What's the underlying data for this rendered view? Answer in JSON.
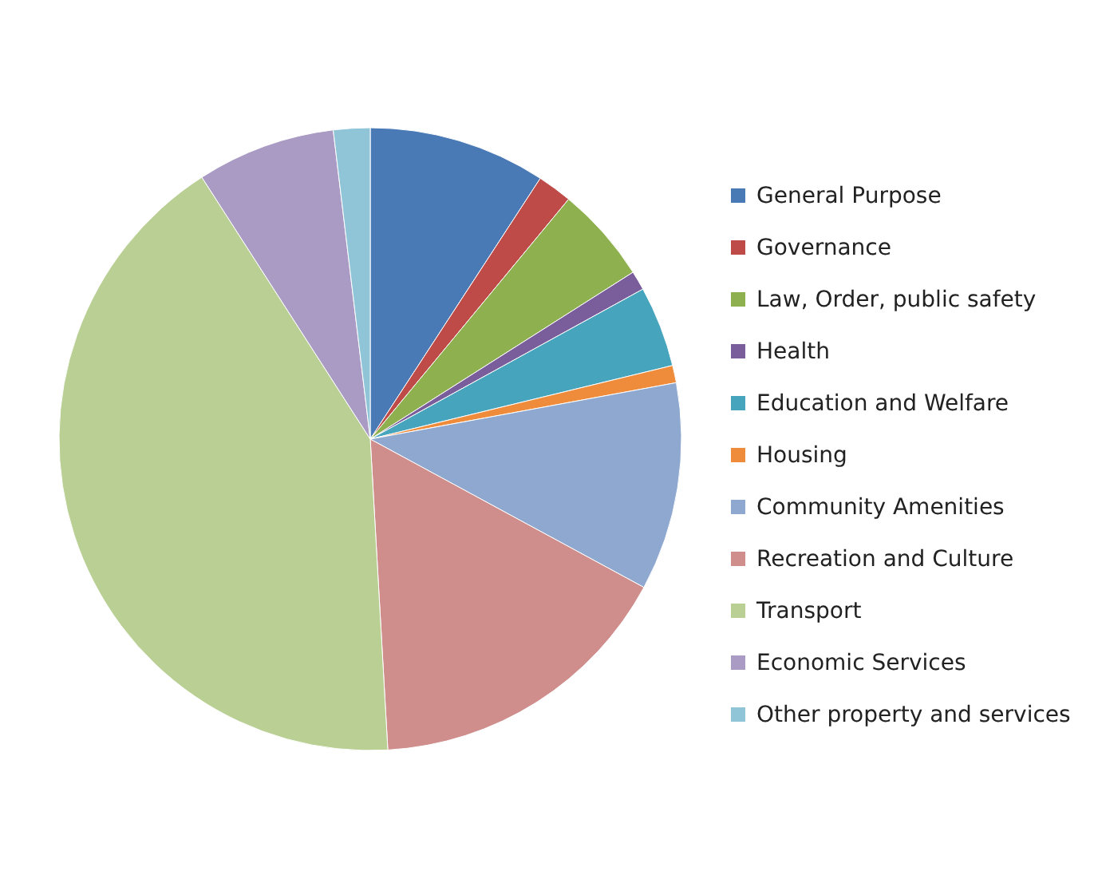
{
  "chart_data": {
    "type": "pie",
    "categories": [
      "General Purpose",
      "Governance",
      "Law, Order, public safety",
      "Health",
      "Education and Welfare",
      "Housing",
      "Community Amenities",
      "Recreation and Culture",
      "Transport",
      "Economic Services",
      "Other property and services"
    ],
    "values": [
      9.2,
      1.8,
      5,
      1,
      4.2,
      0.9,
      10.8,
      16.2,
      41.8,
      7.2,
      1.9
    ],
    "colors": [
      "#4a7ab5",
      "#be4b48",
      "#8fb04f",
      "#7a5e9c",
      "#46a5bd",
      "#ee8c3c",
      "#8fa8cf",
      "#cf8d8b",
      "#b9cf94",
      "#a99bc3",
      "#90c5d8"
    ],
    "legend": "right"
  }
}
